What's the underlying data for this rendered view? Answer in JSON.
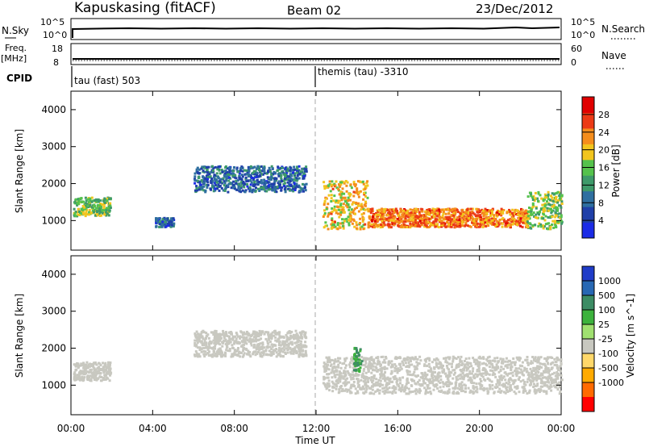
{
  "header": {
    "station": "Kapuskasing (fitACF)",
    "beam": "Beam 02",
    "date": "23/Dec/2012"
  },
  "strip_labels": {
    "nsky": "N.Sky",
    "nsky_top": "10^5",
    "nsky_bottom": "10^0",
    "freq_line1": "Freq.",
    "freq_line2": "[MHz]",
    "freq_top": "18",
    "freq_bottom": "8",
    "cpid": "CPID",
    "nsearch": "N.Search",
    "nsearch_top": "10^5",
    "nsearch_bottom": "10^0",
    "nave": "Nave",
    "nave_top": "60",
    "nave_bottom": "0"
  },
  "cpid_entries": [
    "tau (fast) 503",
    "themis (tau) -3310"
  ],
  "colors": {
    "power": [
      "#1b2be6",
      "#1f3fa8",
      "#2f6fa0",
      "#3e9a6a",
      "#55c24c",
      "#f2c51e",
      "#f58d1c",
      "#ec3a16",
      "#e00000"
    ],
    "velocity": [
      "#ff0000",
      "#ff6a00",
      "#ffaa00",
      "#ffd86a",
      "#c8c8c0",
      "#a0e070",
      "#3cb23c",
      "#3c8c64",
      "#2868b4",
      "#1f3cc8"
    ],
    "ground_scatter": "#c8c8c0"
  },
  "chart_data": [
    {
      "type": "heatmap",
      "panel": "power",
      "xlabel": "",
      "ylabel": "Slant Range [km]",
      "xlim": [
        "00:00",
        "00:00"
      ],
      "ylim": [
        200,
        4500
      ],
      "x_ticks": [
        "00:00",
        "04:00",
        "08:00",
        "12:00",
        "16:00",
        "20:00",
        "00:00"
      ],
      "y_ticks": [
        1000,
        2000,
        3000,
        4000
      ],
      "colorbar_label": "Power [dB]",
      "colorbar_ticks": [
        "4",
        "8",
        "12",
        "16",
        "20",
        "24",
        "28"
      ],
      "scatter_regions": [
        {
          "t_start": 0.1,
          "t_end": 1.9,
          "range_min": 1150,
          "range_max": 1650,
          "power_db": 14
        },
        {
          "t_start": 4.1,
          "t_end": 5.0,
          "range_min": 850,
          "range_max": 1100,
          "power_db": 6
        },
        {
          "t_start": 6.0,
          "t_end": 11.5,
          "range_min": 1800,
          "range_max": 2500,
          "power_db": 6
        },
        {
          "t_start": 12.3,
          "t_end": 14.5,
          "range_min": 800,
          "range_max": 2100,
          "power_db": 18
        },
        {
          "t_start": 14.5,
          "t_end": 22.3,
          "range_min": 850,
          "range_max": 1350,
          "power_db": 22
        },
        {
          "t_start": 22.3,
          "t_end": 24.0,
          "range_min": 800,
          "range_max": 1800,
          "power_db": 14
        }
      ]
    },
    {
      "type": "heatmap",
      "panel": "velocity",
      "xlabel": "Time UT",
      "ylabel": "Slant Range [km]",
      "xlim": [
        "00:00",
        "00:00"
      ],
      "ylim": [
        200,
        4500
      ],
      "x_ticks": [
        "00:00",
        "04:00",
        "08:00",
        "12:00",
        "16:00",
        "20:00",
        "00:00"
      ],
      "y_ticks": [
        1000,
        2000,
        3000,
        4000
      ],
      "colorbar_label": "Velocity [m s^-1]",
      "colorbar_ticks": [
        "1000",
        "500",
        "100",
        "25",
        "-25",
        "-100",
        "-500",
        "-1000"
      ],
      "scatter_regions": [
        {
          "t_start": 0.1,
          "t_end": 1.9,
          "range_min": 1150,
          "range_max": 1650,
          "velocity": 0
        },
        {
          "t_start": 6.0,
          "t_end": 11.5,
          "range_min": 1800,
          "range_max": 2500,
          "velocity": 0
        },
        {
          "t_start": 12.3,
          "t_end": 24.0,
          "range_min": 800,
          "range_max": 1800,
          "velocity": 0
        },
        {
          "t_start": 13.8,
          "t_end": 14.2,
          "range_min": 1400,
          "range_max": 2100,
          "velocity": 100
        }
      ],
      "vertical_marker": "12:00"
    }
  ]
}
